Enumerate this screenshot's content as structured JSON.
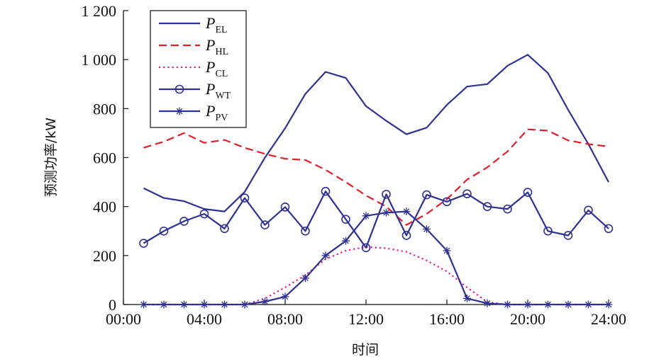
{
  "chart_data": {
    "type": "line",
    "xlabel": "时间",
    "ylabel": "预测功率/kW",
    "x": [
      "01:00",
      "02:00",
      "03:00",
      "04:00",
      "05:00",
      "06:00",
      "07:00",
      "08:00",
      "09:00",
      "10:00",
      "11:00",
      "12:00",
      "13:00",
      "14:00",
      "15:00",
      "16:00",
      "17:00",
      "18:00",
      "19:00",
      "20:00",
      "21:00",
      "22:00",
      "23:00",
      "24:00"
    ],
    "xticks": [
      "00:00",
      "04:00",
      "08:00",
      "12:00",
      "16:00",
      "20:00",
      "24:00"
    ],
    "xlim": [
      0,
      24
    ],
    "ylim": [
      0,
      1200
    ],
    "yticks": [
      0,
      200,
      400,
      600,
      800,
      1000,
      1200
    ],
    "ytick_labels": [
      "0",
      "200",
      "400",
      "600",
      "800",
      "1 000",
      "1 200"
    ],
    "grid": false,
    "legend_position": "top-left",
    "series": [
      {
        "name": "P",
        "sub": "EL",
        "color": "#2e3192",
        "style": "solid",
        "marker": "none",
        "values": [
          475,
          435,
          422,
          390,
          380,
          460,
          600,
          720,
          860,
          950,
          925,
          810,
          750,
          695,
          722,
          815,
          890,
          900,
          975,
          1020,
          945,
          795,
          655,
          500
        ]
      },
      {
        "name": "P",
        "sub": "HL",
        "color": "#e0202a",
        "style": "dashed",
        "marker": "none",
        "values": [
          640,
          665,
          700,
          660,
          672,
          640,
          615,
          595,
          590,
          550,
          500,
          445,
          400,
          325,
          370,
          430,
          510,
          560,
          625,
          715,
          710,
          670,
          655,
          645
        ]
      },
      {
        "name": "P",
        "sub": "CL",
        "color": "#e0208f",
        "style": "dotted",
        "marker": "none",
        "values": [
          0,
          0,
          0,
          0,
          0,
          0,
          25,
          70,
          120,
          185,
          220,
          235,
          230,
          215,
          180,
          135,
          70,
          10,
          0,
          0,
          0,
          0,
          0,
          0
        ]
      },
      {
        "name": "P",
        "sub": "WT",
        "color": "#2e3192",
        "style": "solid",
        "marker": "circle",
        "values": [
          250,
          300,
          340,
          370,
          310,
          435,
          325,
          398,
          300,
          462,
          348,
          232,
          450,
          282,
          448,
          420,
          452,
          400,
          390,
          458,
          300,
          282,
          385,
          310
        ]
      },
      {
        "name": "P",
        "sub": "PV",
        "color": "#2e3192",
        "style": "solid",
        "marker": "asterisk",
        "values": [
          0,
          0,
          0,
          0,
          0,
          0,
          12,
          32,
          108,
          200,
          260,
          362,
          375,
          380,
          308,
          220,
          25,
          5,
          0,
          0,
          0,
          0,
          0,
          0
        ]
      }
    ]
  }
}
